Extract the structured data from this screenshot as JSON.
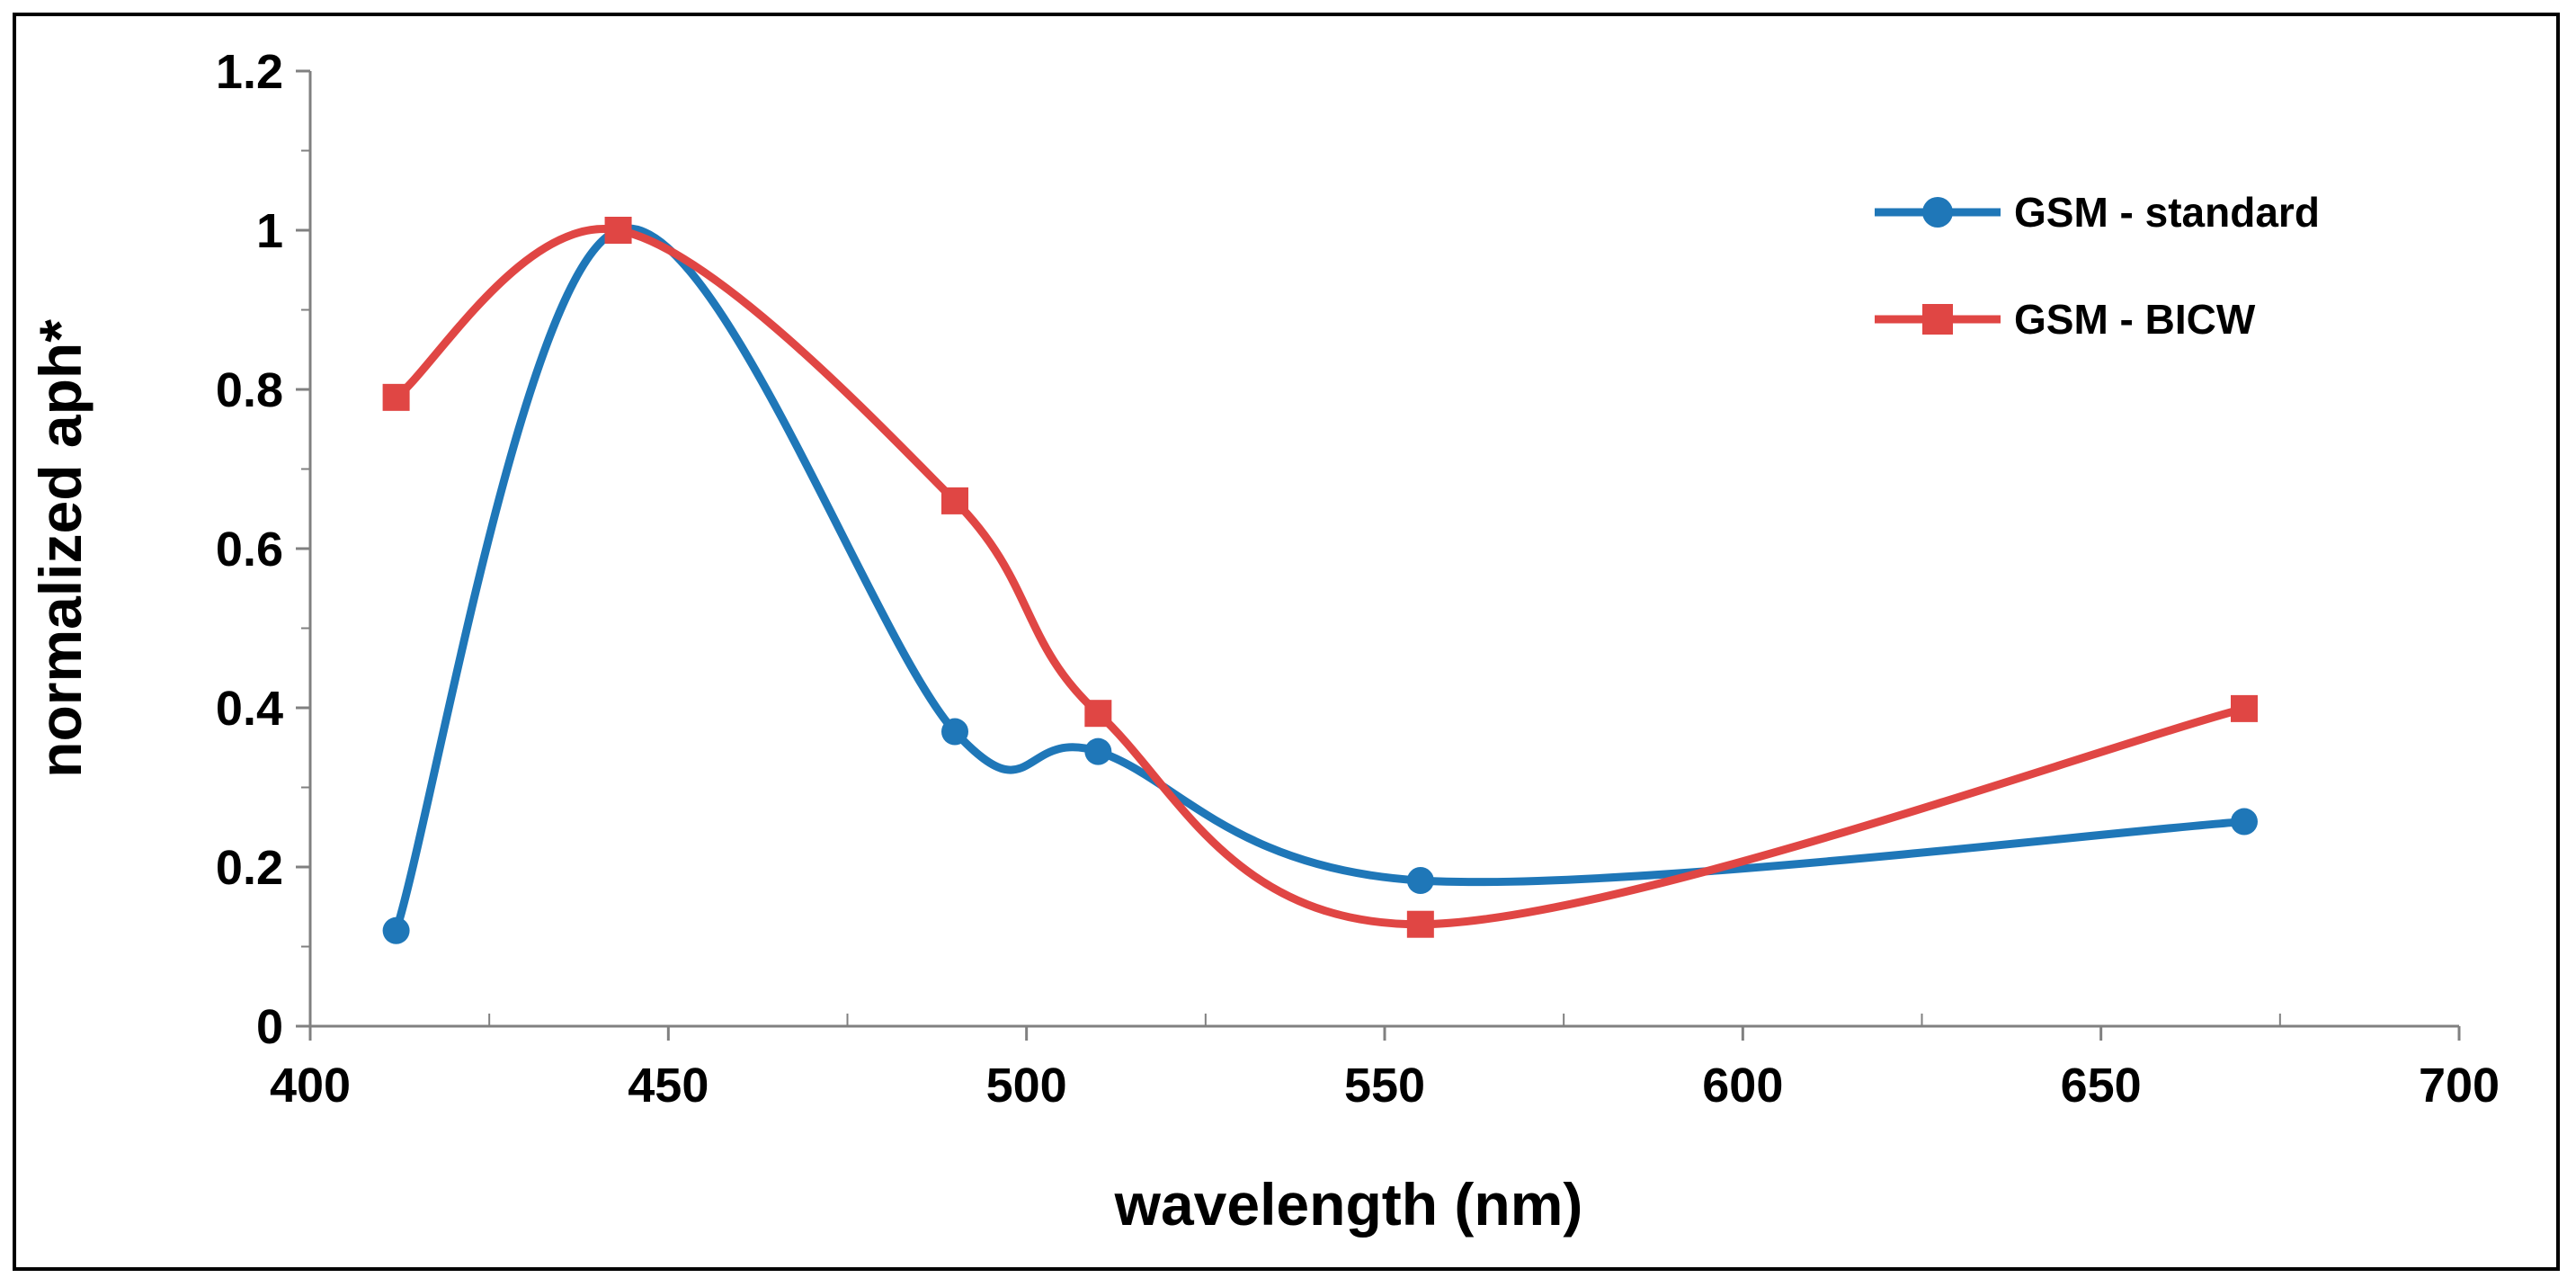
{
  "chart_data": {
    "type": "line",
    "title": "",
    "xlabel": "wavelength (nm)",
    "ylabel": "normalized aph*",
    "xlim": [
      400,
      700
    ],
    "ylim": [
      0,
      1.2
    ],
    "x_ticks": [
      "400",
      "450",
      "500",
      "550",
      "600",
      "650",
      "700"
    ],
    "y_ticks": [
      "0",
      "0.2",
      "0.4",
      "0.6",
      "0.8",
      "1",
      "1.2"
    ],
    "grid": false,
    "smoothed": true,
    "legend_position": "top-right",
    "series": [
      {
        "name": "GSM - standard",
        "color": "#1f77b8",
        "marker": "circle",
        "x": [
          412,
          443,
          490,
          510,
          555,
          670
        ],
        "y": [
          0.12,
          1.0,
          0.37,
          0.345,
          0.183,
          0.257
        ]
      },
      {
        "name": "GSM - BICW",
        "color": "#e04644",
        "marker": "square",
        "x": [
          412,
          443,
          490,
          510,
          555,
          670
        ],
        "y": [
          0.79,
          1.0,
          0.66,
          0.393,
          0.128,
          0.399
        ]
      }
    ]
  }
}
